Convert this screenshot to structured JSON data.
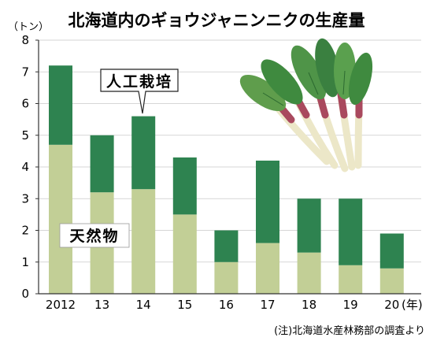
{
  "chart_data": {
    "type": "bar",
    "stacked": true,
    "title": "北海道内のギョウジャニンニクの生産量",
    "ylabel": "（トン）",
    "xunit": "(年)",
    "categories": [
      "2012",
      "13",
      "14",
      "15",
      "16",
      "17",
      "18",
      "19",
      "20"
    ],
    "ylim": [
      0,
      8
    ],
    "yticks": [
      "0",
      "1",
      "2",
      "3",
      "4",
      "5",
      "6",
      "7",
      "8"
    ],
    "grid": true,
    "series": [
      {
        "name": "天然物",
        "values": [
          4.7,
          3.2,
          3.3,
          2.5,
          1.0,
          1.6,
          1.3,
          0.9,
          0.8
        ],
        "color": "#c2cf96"
      },
      {
        "name": "人工栽培",
        "values": [
          2.5,
          1.8,
          2.3,
          1.8,
          1.0,
          2.6,
          1.7,
          2.1,
          1.1
        ],
        "color": "#2e8350"
      }
    ],
    "note": "(注)北海道水産林務部の調査より"
  },
  "illustration": {
    "icon": "gyojaninniku-leek-bundle-illustration"
  }
}
